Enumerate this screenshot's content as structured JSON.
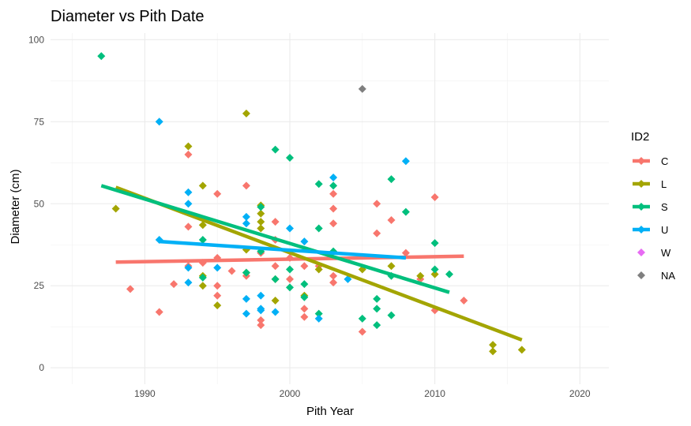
{
  "chart_data": {
    "type": "scatter",
    "title": "Diameter vs Pith Date",
    "xlabel": "Pith Year",
    "ylabel": "Diameter (cm)",
    "xlim": [
      1983.5,
      2022
    ],
    "ylim": [
      -5,
      102
    ],
    "x_ticks": [
      1990,
      2000,
      2010,
      2020
    ],
    "y_ticks": [
      0,
      25,
      50,
      75,
      100
    ],
    "grid": true,
    "legend_title": "ID2",
    "legend_position": "right",
    "series": [
      {
        "name": "C",
        "color": "#F8766D",
        "points": [
          [
            1989,
            24
          ],
          [
            1991,
            17
          ],
          [
            1992,
            25.5
          ],
          [
            1993,
            65
          ],
          [
            1993,
            43
          ],
          [
            1993,
            31
          ],
          [
            1994,
            32
          ],
          [
            1995,
            53
          ],
          [
            1995,
            33.5
          ],
          [
            1995,
            25
          ],
          [
            1995,
            22
          ],
          [
            1996,
            29.5
          ],
          [
            1997,
            55.5
          ],
          [
            1997,
            28
          ],
          [
            1998,
            35
          ],
          [
            1998,
            14.5
          ],
          [
            1998,
            13
          ],
          [
            1999,
            44.5
          ],
          [
            1999,
            39
          ],
          [
            1999,
            31
          ],
          [
            2000,
            33.5
          ],
          [
            2000,
            27
          ],
          [
            2001,
            31
          ],
          [
            2001,
            18
          ],
          [
            2001,
            15.5
          ],
          [
            2002,
            31
          ],
          [
            2003,
            53
          ],
          [
            2003,
            48.5
          ],
          [
            2003,
            44
          ],
          [
            2003,
            28
          ],
          [
            2003,
            26
          ],
          [
            2005,
            11
          ],
          [
            2006,
            50
          ],
          [
            2006,
            41
          ],
          [
            2007,
            45
          ],
          [
            2008,
            35
          ],
          [
            2009,
            27
          ],
          [
            2010,
            52
          ],
          [
            2010,
            17.5
          ],
          [
            2012,
            20.5
          ]
        ],
        "trend": [
          [
            1988,
            32.2
          ],
          [
            2012,
            34
          ]
        ]
      },
      {
        "name": "L",
        "color": "#A3A500",
        "points": [
          [
            1988,
            48.5
          ],
          [
            1993,
            67.5
          ],
          [
            1994,
            55.5
          ],
          [
            1994,
            43.5
          ],
          [
            1994,
            28
          ],
          [
            1994,
            25
          ],
          [
            1995,
            19
          ],
          [
            1997,
            77.5
          ],
          [
            1997,
            36
          ],
          [
            1997,
            29
          ],
          [
            1998,
            49.5
          ],
          [
            1998,
            47
          ],
          [
            1998,
            44.5
          ],
          [
            1998,
            42.5
          ],
          [
            1999,
            27
          ],
          [
            1999,
            20.5
          ],
          [
            2001,
            22
          ],
          [
            2002,
            30
          ],
          [
            2005,
            30
          ],
          [
            2007,
            31
          ],
          [
            2009,
            28
          ],
          [
            2010,
            28.5
          ],
          [
            2014,
            7
          ],
          [
            2014,
            5
          ],
          [
            2016,
            5.5
          ]
        ],
        "trend": [
          [
            1988,
            55
          ],
          [
            2016,
            8.5
          ]
        ]
      },
      {
        "name": "S",
        "color": "#00BF7D",
        "points": [
          [
            1987,
            95
          ],
          [
            1994,
            39
          ],
          [
            1994,
            27.5
          ],
          [
            1997,
            29
          ],
          [
            1998,
            35.5
          ],
          [
            1998,
            49
          ],
          [
            1999,
            66.5
          ],
          [
            1999,
            27
          ],
          [
            2000,
            64
          ],
          [
            2000,
            30
          ],
          [
            2000,
            24.5
          ],
          [
            2001,
            25.5
          ],
          [
            2001,
            21.5
          ],
          [
            2002,
            56
          ],
          [
            2002,
            42.5
          ],
          [
            2002,
            16.5
          ],
          [
            2003,
            55.5
          ],
          [
            2003,
            35.5
          ],
          [
            2005,
            15
          ],
          [
            2006,
            21
          ],
          [
            2006,
            18
          ],
          [
            2006,
            13
          ],
          [
            2007,
            57.5
          ],
          [
            2007,
            28
          ],
          [
            2007,
            16
          ],
          [
            2008,
            47.5
          ],
          [
            2010,
            38
          ],
          [
            2010,
            30
          ],
          [
            2011,
            28.5
          ]
        ],
        "trend": [
          [
            1987,
            55.5
          ],
          [
            2011,
            23
          ]
        ]
      },
      {
        "name": "U",
        "color": "#00B0F6",
        "points": [
          [
            1991,
            75
          ],
          [
            1991,
            39
          ],
          [
            1993,
            53.5
          ],
          [
            1993,
            50
          ],
          [
            1993,
            30.5
          ],
          [
            1993,
            26
          ],
          [
            1995,
            30.5
          ],
          [
            1997,
            46
          ],
          [
            1997,
            44
          ],
          [
            1997,
            21
          ],
          [
            1997,
            16.5
          ],
          [
            1998,
            22
          ],
          [
            1998,
            17.5
          ],
          [
            1998,
            18
          ],
          [
            1999,
            17
          ],
          [
            2000,
            42.5
          ],
          [
            2001,
            38.5
          ],
          [
            2002,
            15
          ],
          [
            2003,
            58
          ],
          [
            2004,
            27
          ],
          [
            2008,
            63
          ]
        ],
        "trend": [
          [
            1991,
            38.5
          ],
          [
            2008,
            33.5
          ]
        ]
      },
      {
        "name": "W",
        "color": "#E76BF3",
        "points": [],
        "trend": null
      },
      {
        "name": "NA",
        "color": "#7F7F7F",
        "points": [
          [
            2005,
            85
          ]
        ],
        "trend": null
      }
    ]
  }
}
